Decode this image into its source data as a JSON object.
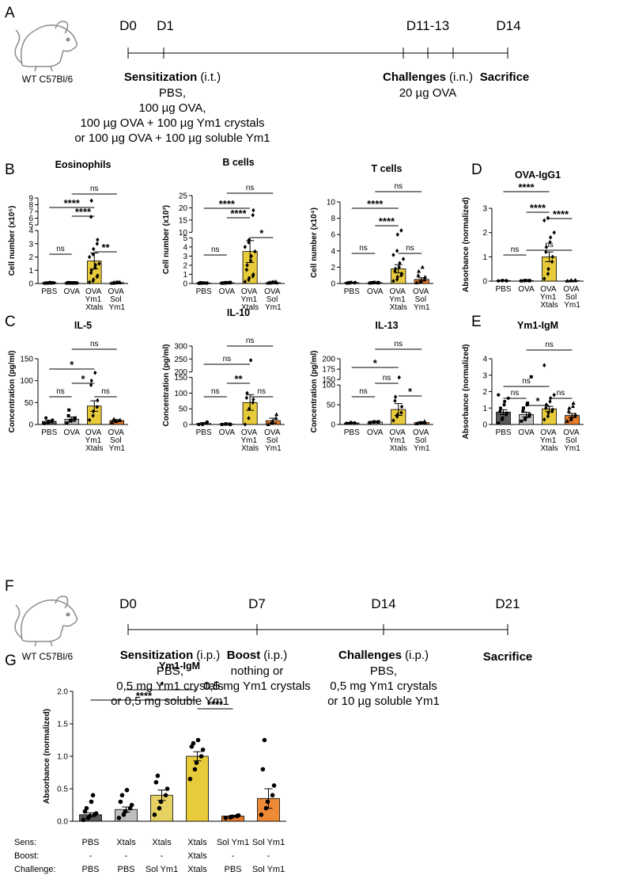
{
  "panel_labels": {
    "a": "A",
    "b": "B",
    "c": "C",
    "d": "D",
    "e": "E",
    "f": "F",
    "g": "G"
  },
  "timeline_a": {
    "strain": "WT C57Bl/6",
    "days": [
      "D0",
      "D1",
      "D11-13",
      "D14"
    ],
    "sensitization": {
      "bold": "Sensitization",
      "rest": "(i.t.)",
      "lines": [
        "PBS,",
        "100 µg OVA,",
        "100 µg OVA + 100 µg Ym1 crystals",
        "or 100 µg OVA + 100 µg soluble Ym1"
      ]
    },
    "challenges": {
      "bold": "Challenges",
      "rest": "(i.n.)",
      "lines": [
        "20 µg OVA"
      ]
    },
    "sacrifice": "Sacrifice"
  },
  "timeline_f": {
    "strain": "WT C57Bl/6",
    "days": [
      "D0",
      "D7",
      "D14",
      "D21"
    ],
    "sensitization": {
      "bold": "Sensitization",
      "rest": "(i.p.)",
      "lines": [
        "PBS,",
        "0,5 mg Ym1 crystals",
        "or 0,5 mg soluble Ym1"
      ]
    },
    "boost": {
      "bold": "Boost",
      "rest": "(i.p.)",
      "lines": [
        "nothing or",
        "0,5 mg Ym1 crystals"
      ]
    },
    "challenges": {
      "bold": "Challenges",
      "rest": "(i.p.)",
      "lines": [
        "PBS,",
        "0,5 mg Ym1 crystals",
        "or 10 µg soluble Ym1"
      ]
    },
    "sacrifice": "Sacrifice"
  },
  "chart_data": [
    {
      "type": "bar",
      "title": "Eosinophils",
      "y_label": "Cell number (x10⁵)",
      "categories": [
        "PBS",
        "OVA",
        "OVA Ym1 Xtals",
        "OVA Sol Ym1"
      ],
      "colors": [
        "#595959",
        "#bfbfbf",
        "#e8cb3b",
        "#e87d2b"
      ],
      "markers": [
        "circle",
        "square",
        "diamond",
        "triangle"
      ],
      "values": [
        0.05,
        0.05,
        1.7,
        0.07
      ],
      "errors": [
        0.02,
        0.02,
        0.6,
        0.03
      ],
      "points": [
        [
          0.02,
          0.03,
          0.05,
          0.04,
          0.06,
          0.03,
          0.05,
          0.08,
          0.04,
          0.05
        ],
        [
          0.03,
          0.04,
          0.06,
          0.05,
          0.04,
          0.07,
          0.05,
          0.03,
          0.06,
          0.04
        ],
        [
          0.1,
          0.2,
          0.3,
          0.5,
          0.6,
          0.8,
          1.0,
          1.2,
          1.4,
          1.5,
          2.0,
          2.2,
          2.6,
          3.0,
          3.3,
          6.2,
          8.6
        ],
        [
          0.03,
          0.05,
          0.08,
          0.1,
          0.06,
          0.04,
          0.07,
          0.12
        ]
      ],
      "ylim": [
        0,
        9
      ],
      "yticks": [
        0,
        1,
        2,
        3,
        4,
        5,
        6,
        7,
        8,
        9
      ],
      "axis_break": [
        4,
        5
      ],
      "comparisons": [
        {
          "between": [
            0,
            1
          ],
          "label": "ns"
        },
        {
          "between": [
            1,
            2
          ],
          "label": "****"
        },
        {
          "between": [
            0,
            2
          ],
          "label": "****"
        },
        {
          "between": [
            1,
            3
          ],
          "label": "ns"
        },
        {
          "between": [
            2,
            3
          ],
          "label": "**"
        }
      ]
    },
    {
      "type": "bar",
      "title": "B cells",
      "y_label": "Cell number (x10³)",
      "categories": [
        "PBS",
        "OVA",
        "OVA Ym1 Xtals",
        "OVA Sol Ym1"
      ],
      "colors": [
        "#595959",
        "#bfbfbf",
        "#e8cb3b",
        "#e87d2b"
      ],
      "markers": [
        "circle",
        "square",
        "diamond",
        "triangle"
      ],
      "values": [
        0.05,
        0.08,
        3.5,
        0.1
      ],
      "errors": [
        0.02,
        0.03,
        1.2,
        0.04
      ],
      "points": [
        [
          0.02,
          0.05,
          0.08,
          0.04,
          0.06,
          0.1,
          0.03,
          0.05
        ],
        [
          0.04,
          0.06,
          0.1,
          0.08,
          0.12,
          0.05,
          0.07,
          0.09
        ],
        [
          0.2,
          0.4,
          0.6,
          0.8,
          1.0,
          1.5,
          2.0,
          2.5,
          3.0,
          3.5,
          4.0,
          4.5,
          4.8,
          17,
          19
        ],
        [
          0.05,
          0.1,
          0.15,
          0.2,
          0.08,
          0.12,
          0.06,
          0.18
        ]
      ],
      "ylim": [
        0,
        25
      ],
      "yticks": [
        0,
        1,
        2,
        3,
        4,
        5,
        10,
        15,
        20,
        25
      ],
      "axis_break": [
        5,
        10
      ],
      "comparisons": [
        {
          "between": [
            0,
            1
          ],
          "label": "ns"
        },
        {
          "between": [
            1,
            2
          ],
          "label": "****"
        },
        {
          "between": [
            0,
            2
          ],
          "label": "****"
        },
        {
          "between": [
            1,
            3
          ],
          "label": "ns"
        },
        {
          "between": [
            2,
            3
          ],
          "label": "*"
        }
      ]
    },
    {
      "type": "bar",
      "title": "T cells",
      "y_label": "Cell number (x10⁴)",
      "categories": [
        "PBS",
        "OVA",
        "OVA Ym1 Xtals",
        "OVA Sol Ym1"
      ],
      "colors": [
        "#595959",
        "#bfbfbf",
        "#e8cb3b",
        "#e87d2b"
      ],
      "markers": [
        "circle",
        "square",
        "diamond",
        "triangle"
      ],
      "values": [
        0.1,
        0.1,
        1.8,
        0.5
      ],
      "errors": [
        0.05,
        0.05,
        0.5,
        0.2
      ],
      "points": [
        [
          0.05,
          0.1,
          0.15,
          0.08,
          0.12,
          0.1,
          0.06
        ],
        [
          0.06,
          0.1,
          0.14,
          0.08,
          0.12,
          0.1,
          0.09
        ],
        [
          0.3,
          0.5,
          0.8,
          1.0,
          1.2,
          1.5,
          1.8,
          2.0,
          2.5,
          3.0,
          3.5,
          4.0,
          6.0,
          6.5
        ],
        [
          0.1,
          0.2,
          0.3,
          0.5,
          0.8,
          1.0,
          1.5,
          2.0
        ]
      ],
      "ylim": [
        0,
        10
      ],
      "yticks": [
        0,
        2,
        4,
        6,
        8,
        10
      ],
      "comparisons": [
        {
          "between": [
            0,
            1
          ],
          "label": "ns"
        },
        {
          "between": [
            1,
            2
          ],
          "label": "****"
        },
        {
          "between": [
            0,
            2
          ],
          "label": "****"
        },
        {
          "between": [
            1,
            3
          ],
          "label": "ns"
        },
        {
          "between": [
            2,
            3
          ],
          "label": "ns"
        }
      ]
    },
    {
      "type": "bar",
      "title": "OVA-IgG1",
      "y_label": "Absorbance (normalized)",
      "categories": [
        "PBS",
        "OVA",
        "OVA Ym1 Xtals",
        "OVA Sol Ym1"
      ],
      "colors": [
        "#595959",
        "#bfbfbf",
        "#e8cb3b",
        "#e87d2b"
      ],
      "markers": [
        "circle",
        "square",
        "diamond",
        "triangle"
      ],
      "values": [
        0.02,
        0.02,
        1.0,
        0.02
      ],
      "errors": [
        0.01,
        0.01,
        0.2,
        0.01
      ],
      "points": [
        [
          0.01,
          0.02,
          0.03,
          0.02,
          0.01
        ],
        [
          0.01,
          0.02,
          0.03,
          0.02,
          0.02
        ],
        [
          0.1,
          0.3,
          0.5,
          0.8,
          1.0,
          1.2,
          1.4,
          1.6,
          1.8,
          2.0,
          2.5,
          2.6
        ],
        [
          0.01,
          0.02,
          0.03,
          0.02,
          0.04
        ]
      ],
      "ylim": [
        0,
        3
      ],
      "yticks": [
        0,
        1,
        2,
        3
      ],
      "comparisons": [
        {
          "between": [
            0,
            1
          ],
          "label": "ns"
        },
        {
          "between": [
            1,
            2
          ],
          "label": "****"
        },
        {
          "between": [
            0,
            2
          ],
          "label": "****"
        },
        {
          "between": [
            2,
            3
          ],
          "label": "****"
        },
        {
          "between": [
            1,
            3
          ],
          "label": "ns"
        }
      ]
    },
    {
      "type": "bar",
      "title": "IL-5",
      "y_label": "Concentration (pg/ml)",
      "categories": [
        "PBS",
        "OVA",
        "OVA Ym1 Xtals",
        "OVA Sol Ym1"
      ],
      "colors": [
        "#595959",
        "#bfbfbf",
        "#e8cb3b",
        "#e87d2b"
      ],
      "markers": [
        "circle",
        "square",
        "diamond",
        "triangle"
      ],
      "values": [
        7,
        12,
        42,
        9
      ],
      "errors": [
        3,
        5,
        12,
        2
      ],
      "points": [
        [
          2,
          4,
          6,
          8,
          10,
          15
        ],
        [
          3,
          8,
          10,
          12,
          15,
          20,
          33
        ],
        [
          10,
          20,
          30,
          40,
          55,
          90,
          100,
          118
        ],
        [
          5,
          7,
          8,
          9,
          10,
          11,
          12
        ]
      ],
      "ylim": [
        0,
        150
      ],
      "yticks": [
        0,
        50,
        100,
        150
      ],
      "comparisons": [
        {
          "between": [
            0,
            1
          ],
          "label": "ns"
        },
        {
          "between": [
            1,
            2
          ],
          "label": "*"
        },
        {
          "between": [
            0,
            2
          ],
          "label": "*"
        },
        {
          "between": [
            1,
            3
          ],
          "label": "ns"
        },
        {
          "between": [
            2,
            3
          ],
          "label": "ns"
        }
      ]
    },
    {
      "type": "bar",
      "title": "IL-10",
      "y_label": "Concentration (pg/ml)",
      "categories": [
        "PBS",
        "OVA",
        "OVA Ym1 Xtals",
        "OVA Sol Ym1"
      ],
      "colors": [
        "#595959",
        "#bfbfbf",
        "#e8cb3b",
        "#e87d2b"
      ],
      "markers": [
        "circle",
        "square",
        "diamond",
        "triangle"
      ],
      "values": [
        3,
        1,
        70,
        12
      ],
      "errors": [
        3,
        1,
        25,
        8
      ],
      "points": [
        [
          0,
          0,
          2,
          5,
          8
        ],
        [
          0,
          1,
          2,
          1,
          0
        ],
        [
          0,
          20,
          50,
          70,
          80,
          85,
          100,
          245
        ],
        [
          0,
          5,
          10,
          20,
          32
        ]
      ],
      "ylim": [
        0,
        300
      ],
      "yticks": [
        0,
        50,
        100,
        150,
        200,
        250,
        300
      ],
      "axis_break": [
        150,
        200
      ],
      "comparisons": [
        {
          "between": [
            0,
            1
          ],
          "label": "ns"
        },
        {
          "between": [
            1,
            2
          ],
          "label": "**"
        },
        {
          "between": [
            0,
            2
          ],
          "label": "ns"
        },
        {
          "between": [
            1,
            3
          ],
          "label": "ns"
        },
        {
          "between": [
            2,
            3
          ],
          "label": "ns"
        }
      ]
    },
    {
      "type": "bar",
      "title": "IL-13",
      "y_label": "Concentration (pg/ml)",
      "categories": [
        "PBS",
        "OVA",
        "OVA Ym1 Xtals",
        "OVA Sol Ym1"
      ],
      "colors": [
        "#595959",
        "#bfbfbf",
        "#e8cb3b",
        "#e87d2b"
      ],
      "markers": [
        "circle",
        "square",
        "diamond",
        "triangle"
      ],
      "values": [
        4,
        6,
        38,
        5
      ],
      "errors": [
        1,
        1,
        15,
        2
      ],
      "points": [
        [
          3,
          4,
          5,
          4
        ],
        [
          5,
          6,
          7,
          6,
          7
        ],
        [
          10,
          20,
          25,
          30,
          45,
          60,
          70,
          155
        ],
        [
          2,
          3,
          5,
          8,
          4
        ]
      ],
      "ylim": [
        0,
        200
      ],
      "yticks": [
        0,
        50,
        100,
        150,
        175,
        200
      ],
      "axis_break": [
        100,
        150
      ],
      "comparisons": [
        {
          "between": [
            0,
            1
          ],
          "label": "ns"
        },
        {
          "between": [
            1,
            2
          ],
          "label": "ns"
        },
        {
          "between": [
            0,
            2
          ],
          "label": "*"
        },
        {
          "between": [
            1,
            3
          ],
          "label": "ns"
        },
        {
          "between": [
            2,
            3
          ],
          "label": "*"
        }
      ]
    },
    {
      "type": "bar",
      "title": "Ym1-IgM",
      "y_label": "Absorbance (normalized)",
      "categories": [
        "PBS",
        "OVA",
        "OVA Ym1 Xtals",
        "OVA Sol Ym1"
      ],
      "colors": [
        "#595959",
        "#bfbfbf",
        "#e8cb3b",
        "#e87d2b"
      ],
      "markers": [
        "circle",
        "square",
        "diamond",
        "triangle"
      ],
      "values": [
        0.75,
        0.6,
        0.95,
        0.55
      ],
      "errors": [
        0.15,
        0.15,
        0.15,
        0.12
      ],
      "points": [
        [
          0.1,
          0.3,
          0.4,
          0.6,
          0.7,
          0.8,
          1.0,
          1.2,
          1.4,
          1.6,
          1.8
        ],
        [
          0.2,
          0.3,
          0.4,
          0.5,
          0.6,
          0.8,
          1.0,
          1.2,
          1.3,
          2.9
        ],
        [
          0.3,
          0.5,
          0.7,
          0.8,
          0.9,
          1.0,
          1.2,
          1.4,
          1.6,
          1.8,
          3.6
        ],
        [
          0.2,
          0.3,
          0.4,
          0.5,
          0.6,
          0.8,
          1.0,
          1.1,
          1.3
        ]
      ],
      "ylim": [
        0,
        4
      ],
      "yticks": [
        0,
        1,
        2,
        3,
        4
      ],
      "comparisons": [
        {
          "between": [
            0,
            1
          ],
          "label": "ns"
        },
        {
          "between": [
            1,
            2
          ],
          "label": "*"
        },
        {
          "between": [
            0,
            2
          ],
          "label": "ns"
        },
        {
          "between": [
            1,
            3
          ],
          "label": "ns"
        },
        {
          "between": [
            2,
            3
          ],
          "label": "ns"
        }
      ]
    },
    {
      "type": "bar",
      "title": "Ym1-IgM",
      "y_label": "Absorbance (normalized)",
      "colors": [
        "#595959",
        "#bfbfbf",
        "#e6d262",
        "#e8cb3b",
        "#e8792b",
        "#ee8a35"
      ],
      "markers": [
        "circle",
        "circle",
        "circle",
        "circle",
        "circle",
        "circle"
      ],
      "category_rows": [
        {
          "label": "Sens:",
          "values": [
            "PBS",
            "Xtals",
            "Xtals",
            "Xtals",
            "Sol Ym1",
            "Sol Ym1"
          ]
        },
        {
          "label": "Boost:",
          "values": [
            "-",
            "-",
            "-",
            "Xtals",
            "-",
            "-"
          ]
        },
        {
          "label": "Challenge:",
          "values": [
            "PBS",
            "PBS",
            "Sol Ym1",
            "Xtals",
            "PBS",
            "Sol Ym1"
          ]
        }
      ],
      "values": [
        0.1,
        0.18,
        0.4,
        1.0,
        0.08,
        0.35
      ],
      "errors": [
        0.03,
        0.04,
        0.08,
        0.07,
        0.01,
        0.15
      ],
      "points": [
        [
          0.02,
          0.05,
          0.08,
          0.1,
          0.12,
          0.15,
          0.2,
          0.3,
          0.4
        ],
        [
          0.05,
          0.1,
          0.15,
          0.2,
          0.25,
          0.3,
          0.4,
          0.48
        ],
        [
          0.1,
          0.2,
          0.3,
          0.4,
          0.5,
          0.6,
          0.7
        ],
        [
          0.65,
          0.8,
          0.9,
          1.0,
          1.1,
          1.15,
          1.2,
          1.25
        ],
        [
          0.05,
          0.06,
          0.07,
          0.08,
          0.09
        ],
        [
          0.1,
          0.2,
          0.3,
          0.4,
          0.55,
          0.8,
          1.25
        ]
      ],
      "ylim": [
        0,
        2
      ],
      "yticks": [
        {
          "value": 0,
          "label": "0.0"
        },
        0.5,
        {
          "value": 1,
          "label": "1.0"
        },
        1.5,
        {
          "value": 2,
          "label": "2.0"
        }
      ],
      "comparisons": [
        {
          "between": [
            1,
            3
          ],
          "label": "*"
        },
        {
          "between": [
            0,
            3
          ],
          "label": "****"
        },
        {
          "between": [
            3,
            4
          ],
          "label": "****"
        }
      ]
    }
  ]
}
